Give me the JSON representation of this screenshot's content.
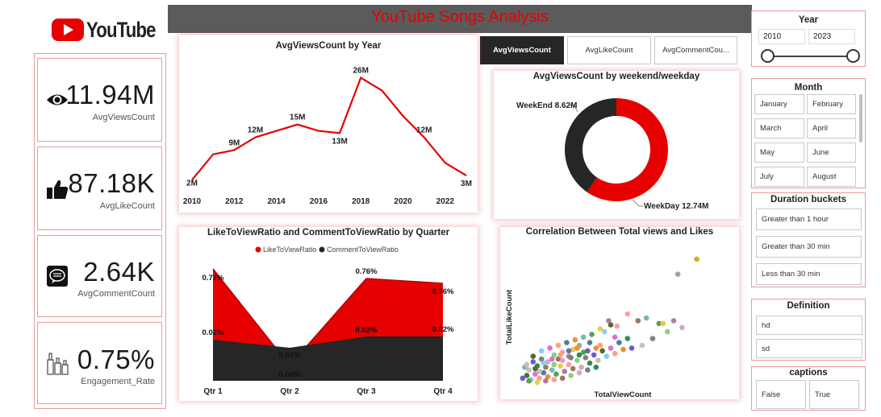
{
  "brand": {
    "logo_text": "YouTube",
    "title": "YouTube Songs Analysis",
    "accent": "#e60000",
    "dark": "#262626"
  },
  "kpis": [
    {
      "value": "11.94M",
      "label": "AvgViewsCount",
      "icon": "eye-icon"
    },
    {
      "value": "87.18K",
      "label": "AvgLikeCount",
      "icon": "thumbs-up-icon"
    },
    {
      "value": "2.64K",
      "label": "AvgCommentCount",
      "icon": "comment-icon"
    },
    {
      "value": "0.75%",
      "label": "Engagement_Rate",
      "icon": "bottles-icon"
    }
  ],
  "metric_buttons": [
    "AvgViewsCount",
    "AvgLikeCount",
    "AvgCommentCou..."
  ],
  "slicers": {
    "year": {
      "title": "Year",
      "from": "2010",
      "to": "2023"
    },
    "month": {
      "title": "Month",
      "items": [
        "January",
        "February",
        "March",
        "April",
        "May",
        "June",
        "July",
        "August"
      ]
    },
    "duration": {
      "title": "Duration buckets",
      "items": [
        "Greater than 1 hour",
        "Greater than 30 min",
        "Less than 30 min"
      ]
    },
    "definition": {
      "title": "Definition",
      "items": [
        "hd",
        "sd"
      ]
    },
    "captions": {
      "title": "captions",
      "items": [
        "False",
        "True"
      ]
    }
  },
  "chart_data": [
    {
      "type": "line",
      "title": "AvgViewsCount by Year",
      "x": [
        2010,
        2011,
        2012,
        2013,
        2014,
        2015,
        2016,
        2017,
        2018,
        2019,
        2020,
        2021,
        2022,
        2023
      ],
      "values": [
        2,
        8,
        9,
        12,
        13.5,
        15,
        13.5,
        13,
        26,
        23,
        17,
        12,
        6,
        3
      ],
      "data_labels": {
        "2010": "2M",
        "2012": "9M",
        "2013": "12M",
        "2015": "15M",
        "2017": "13M",
        "2018": "26M",
        "2021": "12M",
        "2023": "3M"
      },
      "x_ticks": [
        "2010",
        "2012",
        "2014",
        "2016",
        "2018",
        "2020",
        "2022"
      ],
      "ylim": [
        0,
        28
      ],
      "color": "#e60000"
    },
    {
      "type": "pie",
      "title": "AvgViewsCount by weekend/weekday",
      "categories": [
        "WeekDay",
        "WeekEnd"
      ],
      "values": [
        12.74,
        8.62
      ],
      "labels": [
        "WeekDay 12.74M",
        "WeekEnd 8.62M"
      ],
      "colors": [
        "#e60000",
        "#262626"
      ]
    },
    {
      "type": "area",
      "title": "LikeToViewRatio and CommentToViewRatio by Quarter",
      "categories": [
        "Qtr 1",
        "Qtr 2",
        "Qtr 3",
        "Qtr 4"
      ],
      "series": [
        {
          "name": "LikeToViewRatio",
          "values": [
            0.77,
            0.66,
            0.76,
            0.76
          ],
          "labels": [
            "0.77%",
            "0.66%",
            "0.76%",
            "0.76%"
          ],
          "color": "#e60000"
        },
        {
          "name": "CommentToViewRatio",
          "values": [
            0.02,
            0.02,
            0.02,
            0.02
          ],
          "labels": [
            "0.02%",
            "0.02%",
            "0.02%",
            "0.02%"
          ],
          "color": "#262626"
        }
      ]
    },
    {
      "type": "scatter",
      "title": "Correlation Between Total views and Likes",
      "xlabel": "TotalViewCount",
      "ylabel": "TotalLikeCount",
      "points": [
        [
          0.86,
          0.93
        ],
        [
          0.77,
          0.82
        ],
        [
          0.62,
          0.5
        ],
        [
          0.68,
          0.46
        ],
        [
          0.7,
          0.46
        ],
        [
          0.75,
          0.48
        ],
        [
          0.53,
          0.53
        ],
        [
          0.58,
          0.48
        ],
        [
          0.72,
          0.4
        ],
        [
          0.79,
          0.43
        ],
        [
          0.65,
          0.35
        ],
        [
          0.53,
          0.35
        ],
        [
          0.55,
          0.28
        ],
        [
          0.6,
          0.3
        ],
        [
          0.45,
          0.45
        ],
        [
          0.42,
          0.4
        ],
        [
          0.47,
          0.36
        ],
        [
          0.4,
          0.3
        ],
        [
          0.35,
          0.32
        ],
        [
          0.38,
          0.28
        ],
        [
          0.3,
          0.3
        ],
        [
          0.32,
          0.25
        ],
        [
          0.27,
          0.27
        ],
        [
          0.25,
          0.22
        ],
        [
          0.22,
          0.25
        ],
        [
          0.2,
          0.2
        ],
        [
          0.18,
          0.23
        ],
        [
          0.15,
          0.18
        ],
        [
          0.12,
          0.2
        ],
        [
          0.1,
          0.15
        ],
        [
          0.08,
          0.18
        ],
        [
          0.06,
          0.12
        ],
        [
          0.05,
          0.08
        ],
        [
          0.07,
          0.05
        ],
        [
          0.09,
          0.09
        ],
        [
          0.11,
          0.06
        ],
        [
          0.13,
          0.1
        ],
        [
          0.15,
          0.07
        ],
        [
          0.17,
          0.12
        ],
        [
          0.19,
          0.09
        ],
        [
          0.21,
          0.15
        ],
        [
          0.23,
          0.11
        ],
        [
          0.25,
          0.16
        ],
        [
          0.27,
          0.13
        ],
        [
          0.29,
          0.19
        ],
        [
          0.31,
          0.14
        ],
        [
          0.33,
          0.21
        ],
        [
          0.35,
          0.17
        ],
        [
          0.37,
          0.23
        ],
        [
          0.39,
          0.19
        ],
        [
          0.41,
          0.26
        ],
        [
          0.43,
          0.22
        ],
        [
          0.45,
          0.28
        ],
        [
          0.47,
          0.24
        ],
        [
          0.49,
          0.32
        ],
        [
          0.51,
          0.27
        ],
        [
          0.04,
          0.14
        ],
        [
          0.06,
          0.04
        ],
        [
          0.1,
          0.03
        ],
        [
          0.14,
          0.04
        ],
        [
          0.18,
          0.05
        ],
        [
          0.22,
          0.06
        ],
        [
          0.26,
          0.08
        ],
        [
          0.3,
          0.1
        ],
        [
          0.34,
          0.12
        ],
        [
          0.38,
          0.14
        ],
        [
          0.03,
          0.06
        ],
        [
          0.05,
          0.16
        ],
        [
          0.08,
          0.22
        ],
        [
          0.12,
          0.26
        ],
        [
          0.16,
          0.28
        ],
        [
          0.2,
          0.3
        ],
        [
          0.24,
          0.32
        ],
        [
          0.28,
          0.34
        ],
        [
          0.32,
          0.36
        ],
        [
          0.36,
          0.38
        ],
        [
          0.4,
          0.42
        ],
        [
          0.44,
          0.48
        ],
        [
          0.48,
          0.44
        ],
        [
          0.14,
          0.14
        ],
        [
          0.18,
          0.16
        ],
        [
          0.22,
          0.19
        ],
        [
          0.26,
          0.21
        ],
        [
          0.3,
          0.23
        ],
        [
          0.34,
          0.26
        ],
        [
          0.11,
          0.11
        ],
        [
          0.09,
          0.13
        ],
        [
          0.13,
          0.17
        ],
        [
          0.17,
          0.2
        ],
        [
          0.21,
          0.23
        ],
        [
          0.25,
          0.26
        ],
        [
          0.29,
          0.28
        ]
      ]
    }
  ]
}
